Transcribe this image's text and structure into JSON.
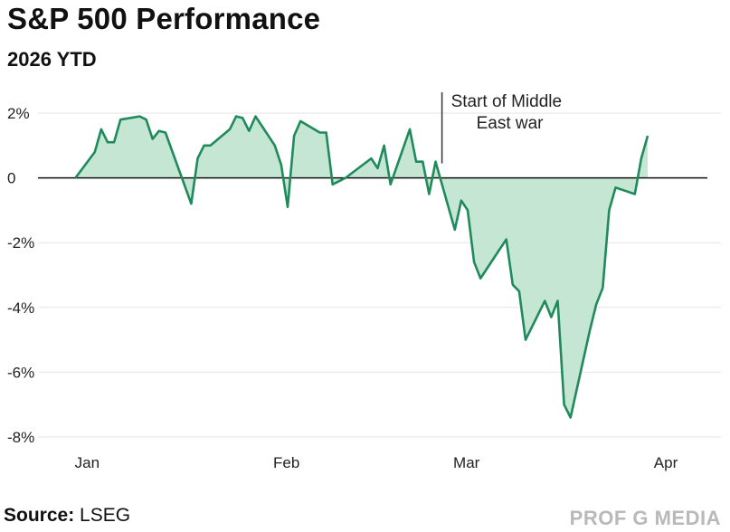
{
  "header": {
    "title": "S&P 500 Performance",
    "subtitle": "2026 YTD"
  },
  "footer": {
    "source_label": "Source:",
    "source_value": "LSEG",
    "brand": "PROF G MEDIA"
  },
  "colors": {
    "line": "#1f8a5b",
    "fill": "#c4e6d2",
    "grid": "#e6e6e6",
    "axis": "#111111"
  },
  "chart_data": {
    "type": "area",
    "title": "S&P 500 Performance",
    "subtitle": "2026 YTD",
    "xlabel": "",
    "ylabel": "",
    "ylim": [
      -8,
      2
    ],
    "grid": true,
    "x_ticks": [
      "Jan",
      "Feb",
      "Mar",
      "Apr"
    ],
    "y_ticks": [
      2,
      0,
      -2,
      -4,
      -6,
      -8
    ],
    "y_tick_labels": [
      "2%",
      "0",
      "-2%",
      "-4%",
      "-6%",
      "-8%"
    ],
    "annotation": {
      "text_line1": "Start of Middle",
      "text_line2": "East war",
      "date": "2026-02-28"
    },
    "series": [
      {
        "x": [
          "2026-01-02",
          "2026-01-05",
          "2026-01-06",
          "2026-01-07",
          "2026-01-08",
          "2026-01-09",
          "2026-01-12",
          "2026-01-13",
          "2026-01-14",
          "2026-01-15",
          "2026-01-16",
          "2026-01-20",
          "2026-01-21",
          "2026-01-22",
          "2026-01-23",
          "2026-01-26",
          "2026-01-27",
          "2026-01-28",
          "2026-01-29",
          "2026-01-30",
          "2026-02-02",
          "2026-02-03",
          "2026-02-04",
          "2026-02-05",
          "2026-02-06",
          "2026-02-09",
          "2026-02-10",
          "2026-02-11",
          "2026-02-12",
          "2026-02-13",
          "2026-02-17",
          "2026-02-18",
          "2026-02-19",
          "2026-02-20",
          "2026-02-23",
          "2026-02-24",
          "2026-02-25",
          "2026-02-26",
          "2026-02-27",
          "2026-03-02",
          "2026-03-03",
          "2026-03-04",
          "2026-03-05",
          "2026-03-06",
          "2026-03-09",
          "2026-03-10",
          "2026-03-11",
          "2026-03-12",
          "2026-03-13",
          "2026-03-16",
          "2026-03-17",
          "2026-03-18",
          "2026-03-19",
          "2026-03-20",
          "2026-03-23",
          "2026-03-24",
          "2026-03-25",
          "2026-03-26",
          "2026-03-27",
          "2026-03-30",
          "2026-03-31",
          "2026-04-01",
          "2026-04-02",
          "2026-04-03",
          "2026-04-06",
          "2026-04-07",
          "2026-04-08"
        ],
        "values": [
          0.0,
          0.8,
          1.5,
          1.1,
          1.1,
          1.8,
          1.9,
          1.8,
          1.2,
          1.45,
          1.4,
          -0.8,
          0.6,
          1.0,
          1.0,
          1.5,
          1.9,
          1.85,
          1.45,
          1.9,
          1.0,
          0.4,
          -0.9,
          1.3,
          1.75,
          1.4,
          1.4,
          -0.2,
          -0.1,
          0.0,
          0.6,
          0.3,
          1.0,
          -0.2,
          1.5,
          0.5,
          0.5,
          -0.5,
          0.5,
          -1.6,
          -0.7,
          -1.0,
          -2.6,
          -3.1,
          -2.2,
          -1.9,
          -3.3,
          -3.5,
          -5.0,
          -3.8,
          -4.3,
          -3.8,
          -7.0,
          -7.4,
          -4.7,
          -3.9,
          -3.4,
          -1.0,
          -0.3,
          -0.5,
          0.6,
          1.3,
          null,
          null,
          null,
          null,
          null
        ]
      }
    ]
  }
}
